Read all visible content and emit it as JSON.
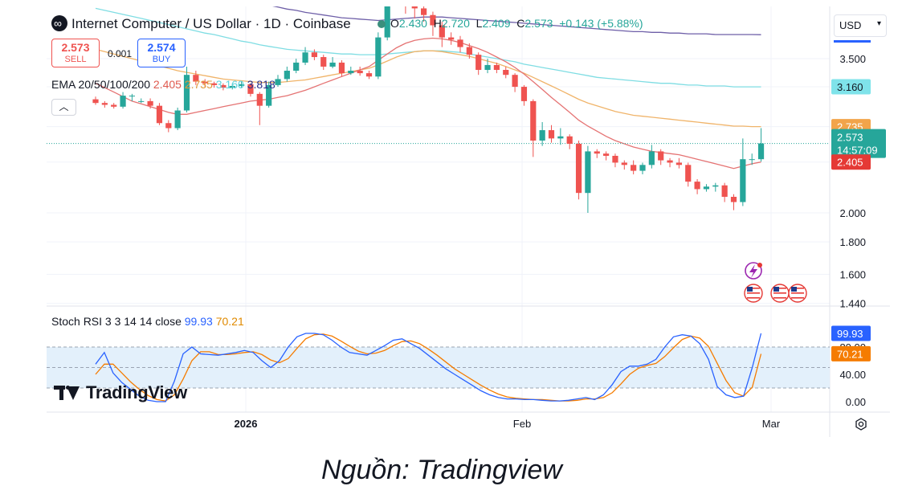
{
  "header": {
    "title": "Internet Computer / US Dollar · 1D · Coinbase",
    "ohlc": {
      "o_label": "O",
      "o": "2.430",
      "h_label": "H",
      "h": "2.720",
      "l_label": "L",
      "l": "2.409",
      "c_label": "C",
      "c": "2.573",
      "change": "+0.143 (+5.88%)"
    },
    "sell_price": "2.573",
    "sell_label": "SELL",
    "spread": "0.001",
    "buy_price": "2.574",
    "buy_label": "BUY",
    "currency": "USD"
  },
  "ema_legend": {
    "label": "EMA 20/50/100/200",
    "v20": "2.405",
    "v50": "2.735",
    "v100": "3.160",
    "v200": "3.818"
  },
  "stoch_legend": {
    "label": "Stoch RSI 3 3 14 14 close",
    "k": "99.93",
    "d": "70.21"
  },
  "watermark": "TradingView",
  "footer_caption": "Nguồn: Tradingview",
  "colors": {
    "up": "#26a69a",
    "down": "#ef5350",
    "ema20": "#e57373",
    "ema50": "#f0b46a",
    "ema100": "#7fdde3",
    "ema200": "#6e5fa8",
    "k": "#2962ff",
    "d": "#f57c00"
  },
  "icons": [
    "lightning-icon",
    "us-flag-icon",
    "settings-icon"
  ],
  "chart_data": [
    {
      "type": "candlestick",
      "title": "Internet Computer / US Dollar · 1D · Coinbase",
      "y_ticks": [
        "3.500",
        "2.000",
        "1.800",
        "1.600",
        "1.440"
      ],
      "y_scale": "log",
      "x_ticks": [
        "2026",
        "Feb",
        "Mar"
      ],
      "price_labels": {
        "ema100": "3.160",
        "ema50": "2.735",
        "last": "2.573",
        "countdown": "14:57:09",
        "ema20": "2.405"
      },
      "candles": [
        [
          3.02,
          2.98,
          3.05,
          2.96
        ],
        [
          2.98,
          2.96,
          3.0,
          2.93
        ],
        [
          2.96,
          2.94,
          2.98,
          2.92
        ],
        [
          2.94,
          3.06,
          3.1,
          2.92
        ],
        [
          3.06,
          3.06,
          3.08,
          3.0
        ],
        [
          3.0,
          3.0,
          3.03,
          2.98
        ],
        [
          3.0,
          2.95,
          3.03,
          2.92
        ],
        [
          2.95,
          2.77,
          2.98,
          2.75
        ],
        [
          2.77,
          2.72,
          2.8,
          2.68
        ],
        [
          2.72,
          2.9,
          2.93,
          2.7
        ],
        [
          2.9,
          3.3,
          3.4,
          2.88
        ],
        [
          3.3,
          3.22,
          3.35,
          3.18
        ],
        [
          3.22,
          3.2,
          3.25,
          3.16
        ],
        [
          3.2,
          3.18,
          3.22,
          3.15
        ],
        [
          3.18,
          3.15,
          3.2,
          3.12
        ],
        [
          3.15,
          3.17,
          3.2,
          3.13
        ],
        [
          3.17,
          3.19,
          3.22,
          3.15
        ],
        [
          3.19,
          3.08,
          3.2,
          3.05
        ],
        [
          3.08,
          2.95,
          3.1,
          2.75
        ],
        [
          2.95,
          3.18,
          3.22,
          2.93
        ],
        [
          3.18,
          3.25,
          3.3,
          3.16
        ],
        [
          3.25,
          3.35,
          3.4,
          3.22
        ],
        [
          3.35,
          3.45,
          3.5,
          3.32
        ],
        [
          3.45,
          3.58,
          3.65,
          3.42
        ],
        [
          3.58,
          3.52,
          3.62,
          3.48
        ],
        [
          3.52,
          3.4,
          3.55,
          3.36
        ],
        [
          3.4,
          3.45,
          3.52,
          3.38
        ],
        [
          3.45,
          3.32,
          3.48,
          3.28
        ],
        [
          3.32,
          3.35,
          3.4,
          3.3
        ],
        [
          3.35,
          3.32,
          3.4,
          3.29
        ],
        [
          3.32,
          3.28,
          3.35,
          3.25
        ],
        [
          3.28,
          3.78,
          3.85,
          3.25
        ],
        [
          3.78,
          4.3,
          4.42,
          3.74
        ],
        [
          4.3,
          4.38,
          4.52,
          4.25
        ],
        [
          4.38,
          4.3,
          4.45,
          4.12
        ],
        [
          4.3,
          4.2,
          4.4,
          4.05
        ],
        [
          4.2,
          4.1,
          4.3,
          4.0
        ],
        [
          4.1,
          3.95,
          4.15,
          3.8
        ],
        [
          3.95,
          3.78,
          4.0,
          3.65
        ],
        [
          3.78,
          3.75,
          3.85,
          3.68
        ],
        [
          3.75,
          3.65,
          3.8,
          3.58
        ],
        [
          3.65,
          3.55,
          3.7,
          3.5
        ],
        [
          3.55,
          3.36,
          3.58,
          3.3
        ],
        [
          3.36,
          3.42,
          3.5,
          3.32
        ],
        [
          3.42,
          3.36,
          3.45,
          3.32
        ],
        [
          3.36,
          3.3,
          3.4,
          3.26
        ],
        [
          3.3,
          3.16,
          3.32,
          3.1
        ],
        [
          3.16,
          3.0,
          3.18,
          2.95
        ],
        [
          3.0,
          2.6,
          3.02,
          2.45
        ],
        [
          2.6,
          2.7,
          2.78,
          2.55
        ],
        [
          2.7,
          2.62,
          2.75,
          2.58
        ],
        [
          2.62,
          2.64,
          2.72,
          2.56
        ],
        [
          2.64,
          2.57,
          2.66,
          2.52
        ],
        [
          2.57,
          2.15,
          2.6,
          2.1
        ],
        [
          2.15,
          2.5,
          2.55,
          2.0
        ],
        [
          2.5,
          2.48,
          2.52,
          2.44
        ],
        [
          2.48,
          2.46,
          2.5,
          2.42
        ],
        [
          2.46,
          2.4,
          2.48,
          2.36
        ],
        [
          2.4,
          2.38,
          2.42,
          2.34
        ],
        [
          2.38,
          2.33,
          2.42,
          2.3
        ],
        [
          2.33,
          2.38,
          2.4,
          2.3
        ],
        [
          2.38,
          2.5,
          2.56,
          2.35
        ],
        [
          2.5,
          2.42,
          2.52,
          2.38
        ],
        [
          2.42,
          2.4,
          2.44,
          2.36
        ],
        [
          2.4,
          2.38,
          2.44,
          2.35
        ],
        [
          2.38,
          2.24,
          2.4,
          2.2
        ],
        [
          2.24,
          2.18,
          2.26,
          2.14
        ],
        [
          2.18,
          2.2,
          2.22,
          2.16
        ],
        [
          2.2,
          2.21,
          2.23,
          2.16
        ],
        [
          2.21,
          2.12,
          2.23,
          2.08
        ],
        [
          2.12,
          2.08,
          2.14,
          2.02
        ],
        [
          2.08,
          2.43,
          2.62,
          2.05
        ],
        [
          2.43,
          2.43,
          2.48,
          2.38
        ],
        [
          2.43,
          2.573,
          2.72,
          2.409
        ]
      ],
      "ema200": [
        4.82,
        4.78,
        4.75,
        4.72,
        4.69,
        4.66,
        4.63,
        4.6,
        4.57,
        4.54,
        4.51,
        4.48,
        4.45,
        4.42,
        4.39,
        4.36,
        4.33,
        4.31,
        4.28,
        4.25,
        4.22,
        4.19,
        4.17,
        4.14,
        4.12,
        4.1,
        4.08,
        4.06,
        4.05,
        4.04,
        4.03,
        4.02,
        4.03,
        4.04,
        4.05,
        4.06,
        4.07,
        4.07,
        4.07,
        4.06,
        4.05,
        4.04,
        4.03,
        4.02,
        4.01,
        4.0,
        3.99,
        3.98,
        3.97,
        3.96,
        3.95,
        3.94,
        3.93,
        3.92,
        3.91,
        3.9,
        3.89,
        3.88,
        3.87,
        3.86,
        3.86,
        3.85,
        3.85,
        3.84,
        3.84,
        3.83,
        3.83,
        3.83,
        3.82,
        3.82,
        3.82,
        3.82,
        3.82,
        3.818
      ],
      "ema100": [
        4.2,
        4.17,
        4.14,
        4.11,
        4.08,
        4.05,
        4.02,
        3.99,
        3.96,
        3.93,
        3.9,
        3.87,
        3.84,
        3.82,
        3.79,
        3.76,
        3.73,
        3.71,
        3.68,
        3.66,
        3.64,
        3.62,
        3.61,
        3.6,
        3.59,
        3.58,
        3.57,
        3.56,
        3.56,
        3.55,
        3.55,
        3.55,
        3.56,
        3.57,
        3.58,
        3.59,
        3.6,
        3.6,
        3.6,
        3.59,
        3.58,
        3.56,
        3.54,
        3.52,
        3.5,
        3.48,
        3.46,
        3.43,
        3.41,
        3.39,
        3.37,
        3.35,
        3.33,
        3.31,
        3.29,
        3.27,
        3.26,
        3.25,
        3.24,
        3.23,
        3.22,
        3.21,
        3.2,
        3.2,
        3.19,
        3.18,
        3.18,
        3.17,
        3.17,
        3.17,
        3.16,
        3.16,
        3.16,
        3.16
      ],
      "ema50": [
        3.62,
        3.59,
        3.56,
        3.53,
        3.5,
        3.47,
        3.44,
        3.41,
        3.38,
        3.35,
        3.33,
        3.31,
        3.29,
        3.27,
        3.25,
        3.24,
        3.23,
        3.22,
        3.21,
        3.21,
        3.21,
        3.22,
        3.23,
        3.24,
        3.26,
        3.28,
        3.3,
        3.32,
        3.34,
        3.36,
        3.38,
        3.42,
        3.47,
        3.52,
        3.56,
        3.59,
        3.6,
        3.6,
        3.59,
        3.57,
        3.55,
        3.53,
        3.5,
        3.47,
        3.44,
        3.4,
        3.36,
        3.32,
        3.27,
        3.22,
        3.17,
        3.12,
        3.07,
        3.02,
        2.98,
        2.95,
        2.92,
        2.89,
        2.87,
        2.85,
        2.84,
        2.83,
        2.82,
        2.81,
        2.8,
        2.79,
        2.78,
        2.77,
        2.76,
        2.75,
        2.74,
        2.74,
        2.735,
        2.735
      ],
      "ema20": [
        3.2,
        3.15,
        3.1,
        3.05,
        3.0,
        2.97,
        2.94,
        2.91,
        2.88,
        2.86,
        2.86,
        2.88,
        2.9,
        2.92,
        2.94,
        2.96,
        2.98,
        3.0,
        3.01,
        3.02,
        3.04,
        3.06,
        3.09,
        3.12,
        3.16,
        3.2,
        3.24,
        3.28,
        3.32,
        3.36,
        3.4,
        3.48,
        3.56,
        3.64,
        3.7,
        3.74,
        3.76,
        3.77,
        3.76,
        3.74,
        3.71,
        3.67,
        3.63,
        3.58,
        3.52,
        3.46,
        3.39,
        3.31,
        3.22,
        3.13,
        3.04,
        2.96,
        2.88,
        2.8,
        2.74,
        2.69,
        2.64,
        2.6,
        2.57,
        2.54,
        2.52,
        2.5,
        2.49,
        2.48,
        2.47,
        2.45,
        2.43,
        2.41,
        2.39,
        2.37,
        2.35,
        2.37,
        2.39,
        2.405
      ]
    },
    {
      "type": "line",
      "title": "Stoch RSI 3 3 14 14 close",
      "y_ticks": [
        "80.00",
        "40.00",
        "0.00"
      ],
      "band": [
        20,
        80
      ],
      "midline": 50,
      "k_label": "99.93",
      "d_label": "70.21",
      "k": [
        55,
        72,
        42,
        28,
        18,
        8,
        2,
        0,
        0,
        30,
        70,
        80,
        70,
        69,
        68,
        70,
        72,
        75,
        72,
        60,
        50,
        60,
        80,
        95,
        100,
        100,
        98,
        90,
        80,
        72,
        70,
        68,
        75,
        82,
        90,
        92,
        85,
        78,
        68,
        58,
        48,
        40,
        32,
        24,
        16,
        10,
        6,
        4,
        4,
        3,
        3,
        2,
        1,
        1,
        2,
        4,
        6,
        3,
        10,
        25,
        44,
        52,
        52,
        55,
        62,
        80,
        95,
        98,
        96,
        85,
        62,
        22,
        10,
        6,
        8,
        50,
        100
      ],
      "d": [
        40,
        55,
        55,
        42,
        29,
        18,
        9,
        3,
        1,
        10,
        33,
        60,
        73,
        73,
        69,
        69,
        70,
        72,
        73,
        69,
        61,
        57,
        63,
        78,
        92,
        98,
        99,
        96,
        89,
        81,
        74,
        70,
        71,
        75,
        82,
        88,
        89,
        85,
        77,
        68,
        58,
        48,
        40,
        32,
        24,
        17,
        11,
        7,
        5,
        4,
        3,
        3,
        2,
        1,
        1,
        2,
        4,
        4,
        6,
        13,
        26,
        40,
        49,
        53,
        56,
        66,
        79,
        91,
        96,
        93,
        81,
        56,
        31,
        13,
        8,
        21,
        70
      ]
    }
  ]
}
